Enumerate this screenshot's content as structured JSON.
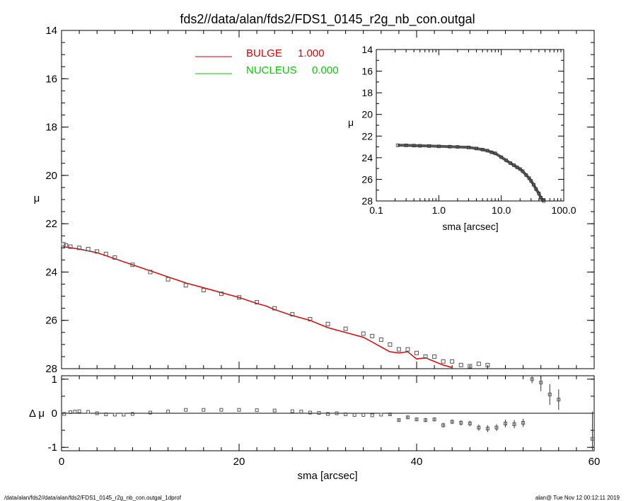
{
  "title": "fds2//data/alan/fds2/FDS1_0145_r2g_nb_con.outgal",
  "footer_left": "/data/alan/fds2//data/alan/fds2/FDS1_0145_r2g_nb_con.outgal_1dprof",
  "footer_right": "alan@  Tue Nov 12 00:12:11 2019",
  "colors": {
    "bulge": "#e00000",
    "nucleus": "#00cc00",
    "data": "#555555",
    "axis": "#000000"
  },
  "chart_data": [
    {
      "panel": "main",
      "type": "scatter",
      "xlabel": "sma [arcsec]",
      "ylabel": "μ",
      "xlim": [
        0,
        60
      ],
      "ylim": [
        28,
        14
      ],
      "x_ticks": [
        "0",
        "20",
        "40",
        "60"
      ],
      "y_ticks": [
        "14",
        "16",
        "18",
        "20",
        "22",
        "24",
        "26",
        "28"
      ],
      "legend": {
        "placement": "top-left",
        "entries": [
          {
            "label": "BULGE",
            "value": "1.000",
            "color": "#e00000"
          },
          {
            "label": "NUCLEUS",
            "value": "0.000",
            "color": "#00cc00"
          }
        ]
      },
      "series": [
        {
          "name": "data",
          "marker": "square",
          "x": [
            0.2,
            0.5,
            1,
            2,
            3,
            4,
            5,
            6,
            8,
            10,
            12,
            14,
            16,
            18,
            20,
            22,
            24,
            26,
            28,
            30,
            32,
            34,
            35,
            36,
            37,
            38,
            39,
            40,
            41,
            42,
            43,
            44,
            45,
            46,
            47,
            48
          ],
          "y": [
            22.85,
            22.9,
            22.95,
            23.0,
            23.05,
            23.15,
            23.25,
            23.4,
            23.7,
            24.0,
            24.3,
            24.55,
            24.75,
            24.9,
            25.05,
            25.25,
            25.5,
            25.75,
            25.95,
            26.15,
            26.35,
            26.55,
            26.65,
            26.8,
            27.0,
            27.2,
            27.2,
            27.35,
            27.5,
            27.5,
            27.7,
            27.7,
            27.85,
            27.9,
            27.8,
            27.85
          ]
        },
        {
          "name": "BULGE",
          "type": "line",
          "color": "#e00000",
          "x": [
            0.2,
            2,
            4,
            6,
            8,
            10,
            12,
            14,
            16,
            18,
            20,
            22,
            23,
            24,
            26,
            28,
            30,
            32,
            34,
            35,
            36,
            37,
            38,
            39,
            40,
            41,
            42,
            43,
            44
          ],
          "y": [
            22.95,
            23.05,
            23.2,
            23.45,
            23.7,
            23.95,
            24.2,
            24.45,
            24.65,
            24.85,
            25.05,
            25.3,
            25.4,
            25.55,
            25.8,
            26.0,
            26.3,
            26.5,
            26.7,
            26.9,
            27.1,
            27.3,
            27.35,
            27.3,
            27.6,
            27.55,
            27.7,
            27.85,
            27.95
          ]
        }
      ]
    },
    {
      "panel": "inset",
      "type": "scatter",
      "xlabel": "sma [arcsec]",
      "ylabel": "μ",
      "xscale": "log",
      "xlim": [
        0.1,
        100
      ],
      "ylim": [
        28,
        14
      ],
      "x_ticks": [
        "0.1",
        "1.0",
        "10.0",
        "100.0"
      ],
      "y_ticks": [
        "14",
        "16",
        "18",
        "20",
        "22",
        "24",
        "26",
        "28"
      ],
      "series": [
        {
          "name": "data",
          "marker": "square",
          "x": [
            0.22,
            0.3,
            0.4,
            0.5,
            0.7,
            1,
            1.5,
            2,
            3,
            4,
            5,
            6,
            7,
            8,
            10,
            12,
            14,
            16,
            18,
            20,
            22,
            25,
            28,
            30,
            33,
            36,
            40,
            43,
            46,
            48
          ],
          "y": [
            22.85,
            22.86,
            22.88,
            22.9,
            22.92,
            22.95,
            22.98,
            23.0,
            23.05,
            23.15,
            23.25,
            23.35,
            23.5,
            23.6,
            23.95,
            24.25,
            24.5,
            24.7,
            24.9,
            25.05,
            25.25,
            25.6,
            25.9,
            26.15,
            26.5,
            26.9,
            27.3,
            27.7,
            27.9,
            28.0
          ]
        }
      ]
    },
    {
      "panel": "residual",
      "type": "scatter",
      "xlabel": "sma [arcsec]",
      "ylabel": "Δ μ",
      "xlim": [
        0,
        60
      ],
      "ylim": [
        -1.1,
        1.1
      ],
      "x_ticks": [
        "0",
        "20",
        "40",
        "60"
      ],
      "y_ticks": [
        "1",
        "0",
        "-1"
      ],
      "series": [
        {
          "name": "residual",
          "marker": "square",
          "error_bars": true,
          "x": [
            0.3,
            1,
            1.5,
            2,
            3,
            4,
            5,
            6,
            7,
            8,
            10,
            12,
            14,
            16,
            18,
            20,
            22,
            24,
            26,
            27,
            28,
            29,
            30,
            31,
            32,
            33,
            34,
            35,
            36,
            37,
            38,
            39,
            40,
            41,
            42,
            43,
            44,
            45,
            46,
            47,
            48,
            49,
            50,
            51,
            52,
            53,
            54,
            55,
            56,
            59.8
          ],
          "y": [
            -0.02,
            0.03,
            0.05,
            0.06,
            0.04,
            0.0,
            -0.03,
            -0.04,
            -0.04,
            -0.02,
            0.02,
            0.05,
            0.1,
            0.1,
            0.1,
            0.1,
            0.09,
            0.08,
            0.06,
            0.05,
            0.02,
            0.01,
            -0.02,
            0.0,
            -0.03,
            -0.05,
            -0.05,
            -0.06,
            -0.04,
            -0.03,
            -0.2,
            -0.12,
            -0.18,
            -0.2,
            -0.18,
            -0.35,
            -0.25,
            -0.28,
            -0.3,
            -0.42,
            -0.45,
            -0.42,
            -0.3,
            -0.32,
            -0.28,
            1.0,
            0.9,
            0.55,
            0.4,
            -0.75
          ],
          "err": [
            0.01,
            0.01,
            0.01,
            0.01,
            0.01,
            0.01,
            0.01,
            0.01,
            0.01,
            0.01,
            0.01,
            0.01,
            0.01,
            0.01,
            0.01,
            0.01,
            0.01,
            0.01,
            0.02,
            0.02,
            0.02,
            0.02,
            0.02,
            0.02,
            0.03,
            0.03,
            0.03,
            0.03,
            0.03,
            0.04,
            0.05,
            0.05,
            0.05,
            0.06,
            0.06,
            0.07,
            0.07,
            0.08,
            0.08,
            0.09,
            0.1,
            0.1,
            0.11,
            0.12,
            0.12,
            0.12,
            0.25,
            0.3,
            0.3,
            0.8
          ]
        }
      ]
    }
  ]
}
